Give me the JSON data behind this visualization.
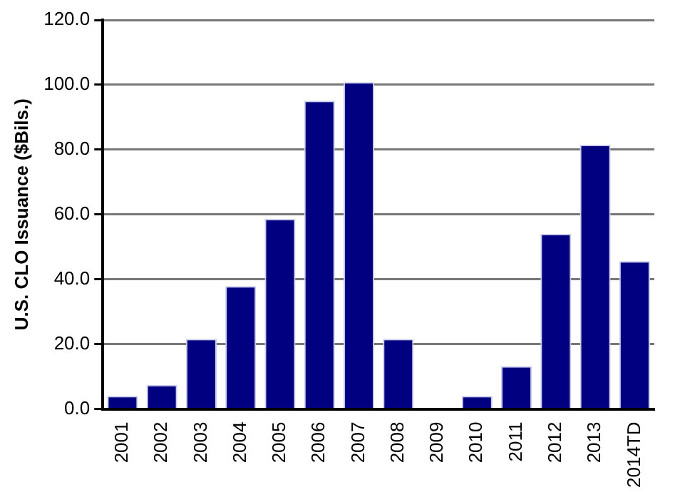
{
  "chart_data": {
    "type": "bar",
    "ylabel": "U.S. CLO Issuance ($Bils.)",
    "categories": [
      "2001",
      "2002",
      "2003",
      "2004",
      "2005",
      "2006",
      "2007",
      "2008",
      "2009",
      "2010",
      "2011",
      "2012",
      "2013",
      "2014TD"
    ],
    "values": [
      4.0,
      7.4,
      21.6,
      37.9,
      58.6,
      95.1,
      100.8,
      21.6,
      0,
      4.0,
      13.2,
      54.0,
      81.5,
      45.6
    ],
    "color": "#000080",
    "ylim": [
      0,
      120
    ],
    "yticks": [
      {
        "value": 0,
        "label": "0.0"
      },
      {
        "value": 20,
        "label": "20.0"
      },
      {
        "value": 40,
        "label": "40.0"
      },
      {
        "value": 60,
        "label": "60.0"
      },
      {
        "value": 80,
        "label": "80.0"
      },
      {
        "value": 100,
        "label": "100.0"
      },
      {
        "value": 120,
        "label": "120.0"
      }
    ],
    "grid": "y",
    "legend": false
  }
}
